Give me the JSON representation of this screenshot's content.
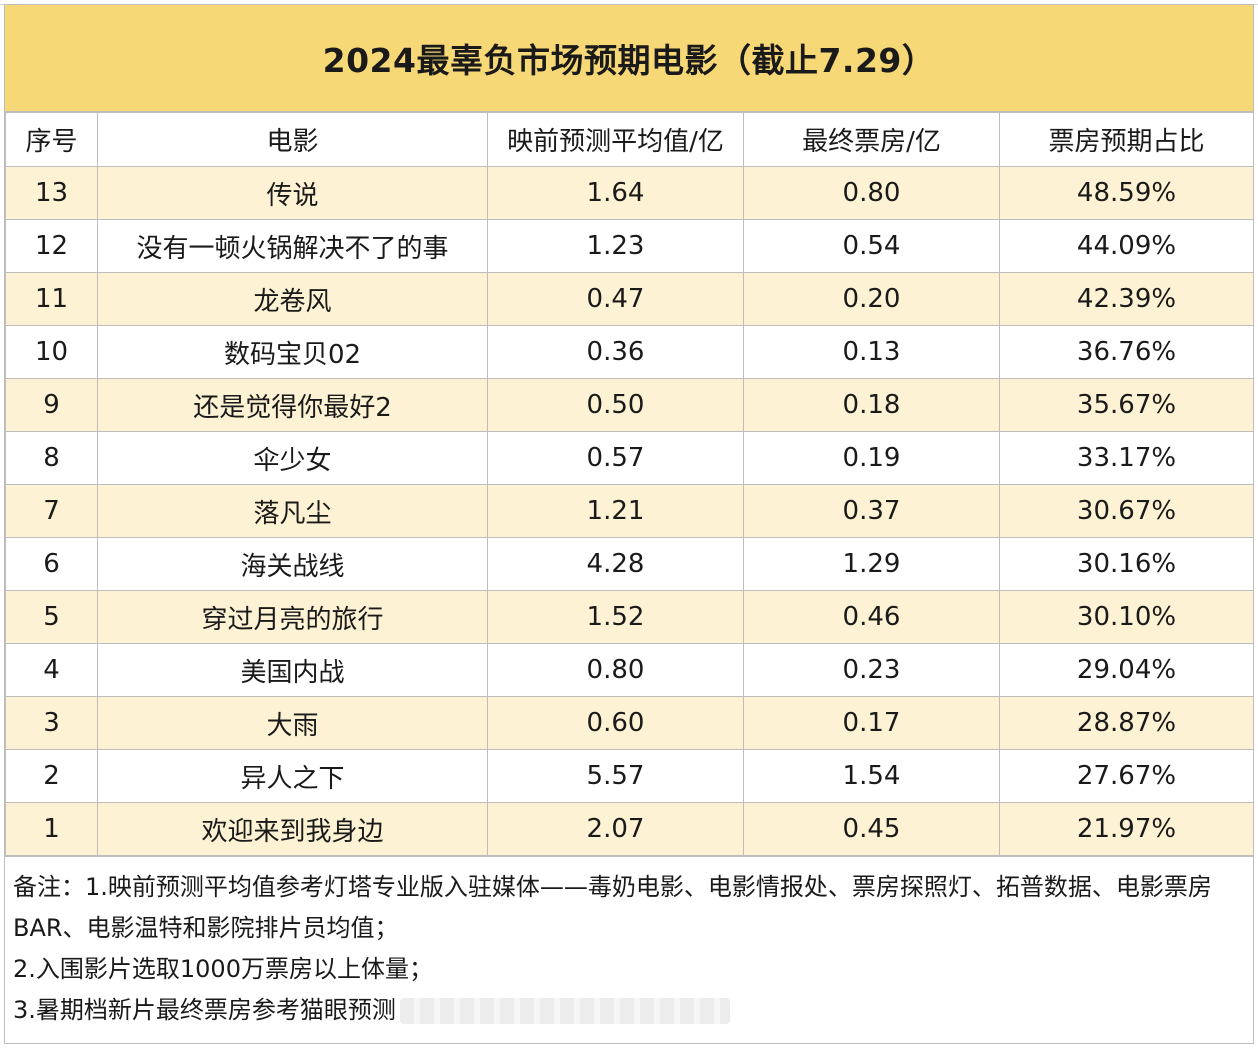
{
  "title": "2024最辜负市场预期电影（截止7.29）",
  "colors": {
    "title_bg": "#f6d877",
    "stripe": "#fdf2d4",
    "border": "#bdbdbd"
  },
  "table": {
    "headers": [
      "序号",
      "电影",
      "映前预测平均值/亿",
      "最终票房/亿",
      "票房预期占比"
    ],
    "rows": [
      {
        "rank": "13",
        "film": "传说",
        "pred": "1.64",
        "final": "0.80",
        "ratio": "48.59%"
      },
      {
        "rank": "12",
        "film": "没有一顿火锅解决不了的事",
        "pred": "1.23",
        "final": "0.54",
        "ratio": "44.09%"
      },
      {
        "rank": "11",
        "film": "龙卷风",
        "pred": "0.47",
        "final": "0.20",
        "ratio": "42.39%"
      },
      {
        "rank": "10",
        "film": "数码宝贝02",
        "pred": "0.36",
        "final": "0.13",
        "ratio": "36.76%"
      },
      {
        "rank": "9",
        "film": "还是觉得你最好2",
        "pred": "0.50",
        "final": "0.18",
        "ratio": "35.67%"
      },
      {
        "rank": "8",
        "film": "伞少女",
        "pred": "0.57",
        "final": "0.19",
        "ratio": "33.17%"
      },
      {
        "rank": "7",
        "film": "落凡尘",
        "pred": "1.21",
        "final": "0.37",
        "ratio": "30.67%"
      },
      {
        "rank": "6",
        "film": "海关战线",
        "pred": "4.28",
        "final": "1.29",
        "ratio": "30.16%"
      },
      {
        "rank": "5",
        "film": "穿过月亮的旅行",
        "pred": "1.52",
        "final": "0.46",
        "ratio": "30.10%"
      },
      {
        "rank": "4",
        "film": "美国内战",
        "pred": "0.80",
        "final": "0.23",
        "ratio": "29.04%"
      },
      {
        "rank": "3",
        "film": "大雨",
        "pred": "0.60",
        "final": "0.17",
        "ratio": "28.87%"
      },
      {
        "rank": "2",
        "film": "异人之下",
        "pred": "5.57",
        "final": "1.54",
        "ratio": "27.67%"
      },
      {
        "rank": "1",
        "film": "欢迎来到我身边",
        "pred": "2.07",
        "final": "0.45",
        "ratio": "21.97%"
      }
    ]
  },
  "notes": {
    "line1": "备注：1.映前预测平均值参考灯塔专业版入驻媒体——毒奶电影、电影情报处、票房探照灯、拓普数据、电影票房BAR、电影温特和影院排片员均值；",
    "line2": "2.入围影片选取1000万票房以上体量；",
    "line3": "3.暑期档新片最终票房参考猫眼预测"
  }
}
